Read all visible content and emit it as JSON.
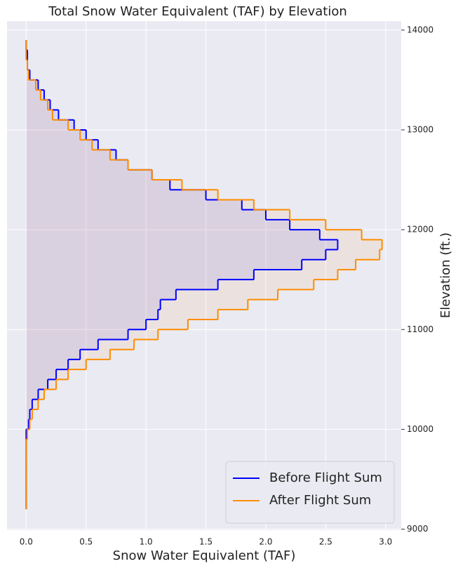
{
  "chart_data": {
    "type": "step",
    "title": "Total Snow Water Equivalent (TAF) by Elevation",
    "x_label": "Snow Water Equivalent (TAF)",
    "y_label": "Elevation (ft.)",
    "y": [
      9200,
      9300,
      9400,
      9500,
      9600,
      9700,
      9800,
      9900,
      10000,
      10100,
      10200,
      10300,
      10400,
      10500,
      10600,
      10700,
      10800,
      10900,
      11000,
      11100,
      11200,
      11300,
      11400,
      11500,
      11600,
      11700,
      11800,
      11900,
      12000,
      12100,
      12200,
      12300,
      12400,
      12500,
      12600,
      12700,
      12800,
      12900,
      13000,
      13100,
      13200,
      13300,
      13400,
      13500,
      13600,
      13700,
      13800
    ],
    "series": [
      {
        "name": "Before Flight Sum",
        "color": "#0000ff",
        "values": [
          0,
          0,
          0,
          0,
          0,
          0,
          0,
          0,
          0.02,
          0.03,
          0.05,
          0.1,
          0.18,
          0.25,
          0.35,
          0.45,
          0.6,
          0.85,
          1.0,
          1.1,
          1.12,
          1.25,
          1.6,
          1.9,
          2.3,
          2.5,
          2.6,
          2.45,
          2.2,
          2.0,
          1.8,
          1.5,
          1.2,
          1.05,
          0.85,
          0.75,
          0.6,
          0.5,
          0.4,
          0.27,
          0.2,
          0.15,
          0.1,
          0.03,
          0.01,
          0.01,
          0.0
        ]
      },
      {
        "name": "After Flight Sum",
        "color": "#ff8c00",
        "values": [
          0,
          0,
          0,
          0,
          0,
          0,
          0,
          0.01,
          0.03,
          0.05,
          0.1,
          0.15,
          0.25,
          0.35,
          0.5,
          0.7,
          0.9,
          1.1,
          1.35,
          1.6,
          1.85,
          2.1,
          2.4,
          2.6,
          2.75,
          2.95,
          2.97,
          2.8,
          2.5,
          2.2,
          1.9,
          1.6,
          1.3,
          1.05,
          0.85,
          0.7,
          0.55,
          0.45,
          0.35,
          0.22,
          0.18,
          0.12,
          0.08,
          0.02,
          0.01,
          0.0,
          0.0
        ]
      }
    ],
    "xlim": [
      -0.16,
      3.13
    ],
    "ylim": [
      8990,
      14090
    ],
    "xticks": [
      {
        "value": 0,
        "label": "0.0"
      },
      0.5,
      {
        "value": 1,
        "label": "1.0"
      },
      1.5,
      {
        "value": 2,
        "label": "2.0"
      },
      2.5,
      {
        "value": 3,
        "label": "3.0"
      }
    ],
    "yticks": [
      9000,
      10000,
      11000,
      12000,
      13000,
      14000
    ],
    "grid": true,
    "y_axis_side": "right",
    "legend": "lower right"
  }
}
